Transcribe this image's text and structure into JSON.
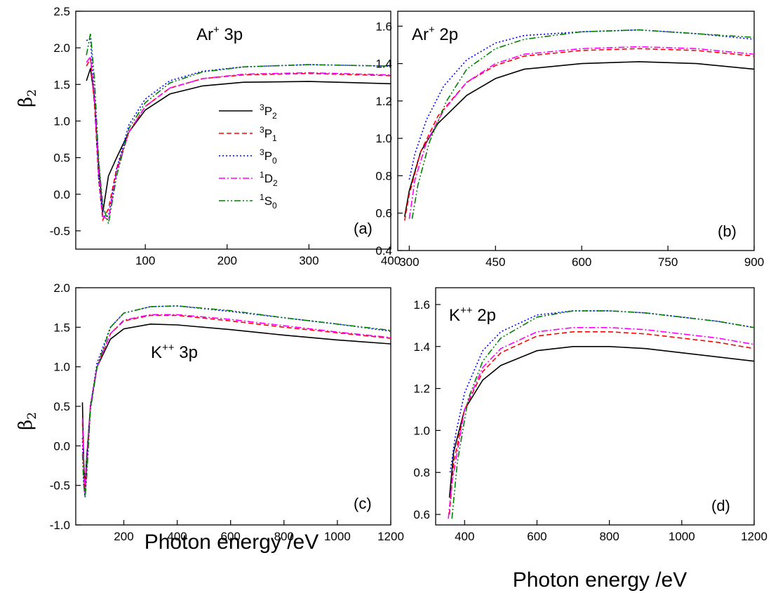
{
  "figure": {
    "xlabel": "Photon energy /eV",
    "ylabel": "β",
    "ylabel_sub": "2"
  },
  "legend": [
    {
      "sup": "3",
      "base": "P",
      "sub": "2",
      "color": "#000000",
      "dash": "solid"
    },
    {
      "sup": "3",
      "base": "P",
      "sub": "1",
      "color": "#ff0000",
      "dash": "dash"
    },
    {
      "sup": "3",
      "base": "P",
      "sub": "0",
      "color": "#0000ff",
      "dash": "dot"
    },
    {
      "sup": "1",
      "base": "D",
      "sub": "2",
      "color": "#ff00ff",
      "dash": "dashdot"
    },
    {
      "sup": "1",
      "base": "S",
      "sub": "0",
      "color": "#008000",
      "dash": "dashdotdot"
    }
  ],
  "chart_data": [
    {
      "panel": "(a)",
      "type": "line",
      "annotation": {
        "base": "Ar",
        "sup": "+",
        "rest": " 3p"
      },
      "xlim": [
        15,
        400
      ],
      "ylim": [
        -0.75,
        2.5
      ],
      "xticks": [
        "100",
        "200",
        "300",
        "400"
      ],
      "xtick_values": [
        100,
        200,
        300,
        400
      ],
      "yticks": [
        "-0.5",
        "0.0",
        "0.5",
        "1.0",
        "1.5",
        "2.0",
        "2.5"
      ],
      "ytick_values": [
        -0.5,
        0,
        0.5,
        1.0,
        1.5,
        2.0,
        2.5
      ],
      "series": [
        {
          "x": [
            28,
            33,
            38,
            43,
            48,
            55,
            65,
            80,
            100,
            130,
            170,
            220,
            300,
            400
          ],
          "y": [
            1.55,
            1.72,
            1.3,
            0.4,
            -0.25,
            0.25,
            0.5,
            0.85,
            1.15,
            1.37,
            1.48,
            1.53,
            1.54,
            1.51
          ]
        },
        {
          "x": [
            28,
            33,
            38,
            43,
            48,
            55,
            65,
            80,
            100,
            130,
            170,
            220,
            300,
            400
          ],
          "y": [
            1.75,
            1.85,
            1.2,
            0.2,
            -0.35,
            -0.2,
            0.35,
            0.85,
            1.2,
            1.45,
            1.58,
            1.63,
            1.65,
            1.62
          ]
        },
        {
          "x": [
            28,
            33,
            38,
            43,
            48,
            55,
            65,
            80,
            100,
            130,
            170,
            220,
            300,
            400
          ],
          "y": [
            2.1,
            2.12,
            1.3,
            0.2,
            -0.3,
            -0.3,
            0.35,
            0.95,
            1.3,
            1.55,
            1.68,
            1.74,
            1.77,
            1.75
          ]
        },
        {
          "x": [
            28,
            33,
            38,
            43,
            48,
            55,
            65,
            80,
            100,
            130,
            170,
            220,
            300,
            400
          ],
          "y": [
            1.8,
            1.88,
            1.3,
            0.3,
            -0.3,
            -0.35,
            0.3,
            0.85,
            1.2,
            1.45,
            1.58,
            1.64,
            1.66,
            1.63
          ]
        },
        {
          "x": [
            28,
            33,
            38,
            43,
            48,
            55,
            65,
            80,
            100,
            130,
            170,
            220,
            300,
            400
          ],
          "y": [
            1.9,
            2.2,
            1.55,
            0.45,
            -0.15,
            -0.4,
            0.25,
            0.9,
            1.25,
            1.52,
            1.67,
            1.74,
            1.77,
            1.75
          ]
        }
      ]
    },
    {
      "panel": "(b)",
      "type": "line",
      "annotation": {
        "base": "Ar",
        "sup": "+",
        "rest": " 2p"
      },
      "xlim": [
        280,
        900
      ],
      "ylim": [
        0.4,
        1.68
      ],
      "xticks": [
        "300",
        "450",
        "600",
        "750",
        "900"
      ],
      "xtick_values": [
        300,
        450,
        600,
        750,
        900
      ],
      "yticks": [
        "0.4",
        "0.6",
        "0.8",
        "1.0",
        "1.2",
        "1.4",
        "1.6"
      ],
      "ytick_values": [
        0.4,
        0.6,
        0.8,
        1.0,
        1.2,
        1.4,
        1.6
      ],
      "series": [
        {
          "x": [
            292,
            300,
            320,
            350,
            400,
            450,
            500,
            600,
            700,
            800,
            900
          ],
          "y": [
            0.58,
            0.72,
            0.93,
            1.08,
            1.23,
            1.32,
            1.37,
            1.4,
            1.41,
            1.4,
            1.37
          ]
        },
        {
          "x": [
            292,
            300,
            320,
            350,
            400,
            450,
            500,
            600,
            700,
            800,
            900
          ],
          "y": [
            0.56,
            0.7,
            0.93,
            1.12,
            1.3,
            1.39,
            1.44,
            1.47,
            1.48,
            1.47,
            1.44
          ]
        },
        {
          "x": [
            300,
            310,
            330,
            360,
            400,
            450,
            500,
            600,
            700,
            800,
            900
          ],
          "y": [
            0.78,
            0.92,
            1.1,
            1.28,
            1.42,
            1.51,
            1.55,
            1.57,
            1.58,
            1.56,
            1.53
          ]
        },
        {
          "x": [
            300,
            310,
            330,
            360,
            400,
            450,
            500,
            600,
            700,
            800,
            900
          ],
          "y": [
            0.57,
            0.78,
            0.98,
            1.15,
            1.3,
            1.4,
            1.45,
            1.48,
            1.49,
            1.48,
            1.45
          ]
        },
        {
          "x": [
            305,
            315,
            335,
            365,
            400,
            450,
            500,
            600,
            700,
            800,
            900
          ],
          "y": [
            0.57,
            0.75,
            0.98,
            1.2,
            1.37,
            1.48,
            1.53,
            1.57,
            1.58,
            1.56,
            1.54
          ]
        }
      ]
    },
    {
      "panel": "(c)",
      "type": "line",
      "annotation": {
        "base": "K",
        "sup": "++",
        "rest": " 3p"
      },
      "xlim": [
        20,
        1200
      ],
      "ylim": [
        -1.0,
        2.0
      ],
      "xticks": [
        "200",
        "400",
        "600",
        "800",
        "1000",
        "1200"
      ],
      "xtick_values": [
        200,
        400,
        600,
        800,
        1000,
        1200
      ],
      "yticks": [
        "-1.0",
        "-0.5",
        "0.0",
        "0.5",
        "1.0",
        "1.5",
        "2.0"
      ],
      "ytick_values": [
        -1.0,
        -0.5,
        0,
        0.5,
        1.0,
        1.5,
        2.0
      ],
      "series": [
        {
          "x": [
            45,
            50,
            55,
            60,
            75,
            100,
            150,
            200,
            300,
            400,
            600,
            800,
            1000,
            1200
          ],
          "y": [
            0.55,
            -0.2,
            -0.55,
            -0.2,
            0.5,
            1.0,
            1.35,
            1.48,
            1.54,
            1.53,
            1.47,
            1.4,
            1.34,
            1.29
          ]
        },
        {
          "x": [
            45,
            50,
            55,
            60,
            75,
            100,
            150,
            200,
            300,
            400,
            600,
            800,
            1000,
            1200
          ],
          "y": [
            0.3,
            -0.3,
            -0.6,
            -0.3,
            0.5,
            1.0,
            1.42,
            1.58,
            1.65,
            1.65,
            1.58,
            1.5,
            1.43,
            1.36
          ]
        },
        {
          "x": [
            45,
            50,
            55,
            60,
            75,
            100,
            150,
            200,
            300,
            400,
            600,
            800,
            1000,
            1200
          ],
          "y": [
            0.1,
            -0.5,
            -0.65,
            -0.35,
            0.5,
            1.05,
            1.5,
            1.68,
            1.76,
            1.77,
            1.7,
            1.62,
            1.54,
            1.45
          ]
        },
        {
          "x": [
            45,
            50,
            55,
            60,
            75,
            100,
            150,
            200,
            300,
            400,
            600,
            800,
            1000,
            1200
          ],
          "y": [
            0.35,
            -0.3,
            -0.6,
            -0.3,
            0.5,
            1.0,
            1.42,
            1.59,
            1.66,
            1.66,
            1.6,
            1.52,
            1.44,
            1.37
          ]
        },
        {
          "x": [
            45,
            50,
            55,
            60,
            75,
            100,
            150,
            200,
            300,
            400,
            600,
            800,
            1000,
            1200
          ],
          "y": [
            -0.1,
            -0.5,
            -0.65,
            -0.45,
            0.45,
            1.0,
            1.5,
            1.68,
            1.76,
            1.77,
            1.71,
            1.62,
            1.54,
            1.46
          ]
        }
      ]
    },
    {
      "panel": "(d)",
      "type": "line",
      "annotation": {
        "base": "K",
        "sup": "++",
        "rest": " 2p"
      },
      "xlim": [
        320,
        1200
      ],
      "ylim": [
        0.55,
        1.68
      ],
      "xticks": [
        "400",
        "600",
        "800",
        "1000",
        "1200"
      ],
      "xtick_values": [
        400,
        600,
        800,
        1000,
        1200
      ],
      "yticks": [
        "0.6",
        "0.8",
        "1.0",
        "1.2",
        "1.4",
        "1.6"
      ],
      "ytick_values": [
        0.6,
        0.8,
        1.0,
        1.2,
        1.4,
        1.6
      ],
      "series": [
        {
          "x": [
            358,
            370,
            400,
            450,
            500,
            600,
            700,
            800,
            900,
            1000,
            1100,
            1200
          ],
          "y": [
            0.68,
            0.9,
            1.1,
            1.24,
            1.31,
            1.38,
            1.4,
            1.4,
            1.39,
            1.37,
            1.35,
            1.33
          ]
        },
        {
          "x": [
            358,
            370,
            400,
            450,
            500,
            600,
            700,
            800,
            900,
            1000,
            1100,
            1200
          ],
          "y": [
            0.6,
            0.85,
            1.1,
            1.28,
            1.37,
            1.45,
            1.47,
            1.47,
            1.46,
            1.44,
            1.42,
            1.39
          ]
        },
        {
          "x": [
            360,
            375,
            400,
            450,
            500,
            600,
            700,
            800,
            900,
            1000,
            1100,
            1200
          ],
          "y": [
            0.8,
            0.98,
            1.18,
            1.38,
            1.47,
            1.55,
            1.57,
            1.57,
            1.56,
            1.54,
            1.52,
            1.49
          ]
        },
        {
          "x": [
            355,
            365,
            400,
            450,
            500,
            600,
            700,
            800,
            900,
            1000,
            1100,
            1200
          ],
          "y": [
            0.58,
            0.75,
            1.1,
            1.3,
            1.39,
            1.47,
            1.49,
            1.49,
            1.48,
            1.46,
            1.44,
            1.41
          ]
        },
        {
          "x": [
            365,
            380,
            410,
            450,
            500,
            600,
            700,
            800,
            900,
            1000,
            1100,
            1200
          ],
          "y": [
            0.58,
            0.85,
            1.15,
            1.33,
            1.44,
            1.54,
            1.57,
            1.57,
            1.56,
            1.54,
            1.52,
            1.49
          ]
        }
      ]
    }
  ]
}
